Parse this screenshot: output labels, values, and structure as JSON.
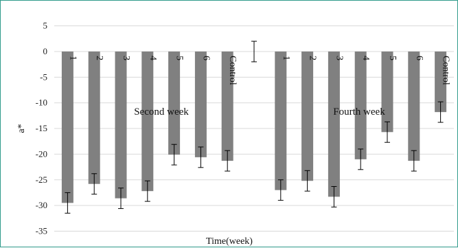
{
  "chart_data": {
    "type": "bar",
    "xlabel": "Time(week)",
    "ylabel": "a*",
    "ylim": [
      -35,
      5
    ],
    "yticks": [
      5,
      0,
      -5,
      -10,
      -15,
      -20,
      -25,
      -30,
      -35
    ],
    "grid": true,
    "bar_color": "#808080",
    "categories": [
      "1",
      "2",
      "3",
      "4",
      "5",
      "6",
      "Control",
      "",
      "1",
      "2",
      "3",
      "4",
      "5",
      "6",
      "Control"
    ],
    "values": [
      -29.5,
      -25.8,
      -28.6,
      -27.2,
      -20.1,
      -20.6,
      -21.3,
      0,
      -27.0,
      -25.2,
      -28.3,
      -21.0,
      -15.7,
      -21.3,
      -11.8
    ],
    "errors": [
      2.0,
      2.0,
      2.0,
      2.0,
      2.0,
      2.0,
      2.0,
      2.0,
      2.0,
      2.0,
      2.0,
      2.0,
      2.0,
      2.0,
      2.0
    ],
    "annotations": [
      "Second week",
      "Fourth week"
    ]
  }
}
